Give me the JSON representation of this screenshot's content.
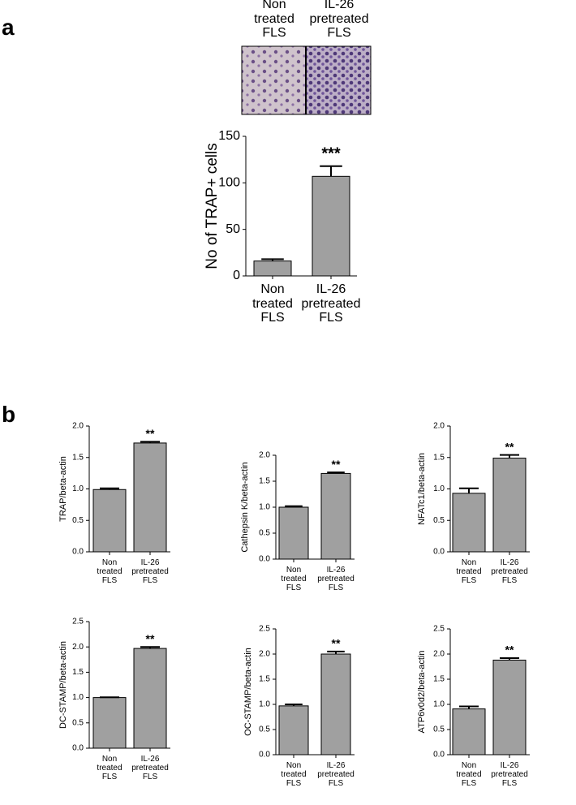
{
  "panel_labels": [
    "a",
    "b"
  ],
  "image_labels": [
    "Non treated FLS",
    "IL-26 pretreated FLS"
  ],
  "chart_data": [
    {
      "type": "bar",
      "ylabel": "No of TRAP+ cells",
      "categories": [
        "Non treated FLS",
        "IL-26 pretreated FLS"
      ],
      "values": [
        16,
        107
      ],
      "errors": [
        2,
        11
      ],
      "annotation": "***",
      "color": "#a0a0a0",
      "ylim": [
        0,
        150
      ],
      "yticks": [
        0,
        50,
        100,
        150
      ]
    },
    {
      "type": "bar",
      "ylabel": "TRAP/beta-actin",
      "categories": [
        "Non treated FLS",
        "IL-26 pretreated FLS"
      ],
      "values": [
        0.99,
        1.73
      ],
      "errors": [
        0.02,
        0.02
      ],
      "annotation": "**",
      "color": "#a0a0a0",
      "ylim": [
        0,
        2
      ],
      "yticks": [
        {
          "value": 0,
          "label": "0.0"
        },
        0.5,
        {
          "value": 1,
          "label": "1.0"
        },
        1.5,
        {
          "value": 2,
          "label": "2.0"
        }
      ]
    },
    {
      "type": "bar",
      "ylabel": "Cathepsin K/beta-actin",
      "categories": [
        "Non treated FLS",
        "IL-26 pretreated FLS"
      ],
      "values": [
        1.0,
        1.65
      ],
      "errors": [
        0.02,
        0.02
      ],
      "annotation": "**",
      "color": "#a0a0a0",
      "ylim": [
        0,
        2
      ],
      "yticks": [
        {
          "value": 0,
          "label": "0.0"
        },
        0.5,
        {
          "value": 1,
          "label": "1.0"
        },
        1.5,
        {
          "value": 2,
          "label": "2.0"
        }
      ]
    },
    {
      "type": "bar",
      "ylabel": "NFATc1/beta-actin",
      "categories": [
        "Non treated FLS",
        "IL-26 pretreated FLS"
      ],
      "values": [
        0.93,
        1.49
      ],
      "errors": [
        0.08,
        0.05
      ],
      "annotation": "**",
      "color": "#a0a0a0",
      "ylim": [
        0,
        2
      ],
      "yticks": [
        {
          "value": 0,
          "label": "0.0"
        },
        0.5,
        {
          "value": 1,
          "label": "1.0"
        },
        1.5,
        {
          "value": 2,
          "label": "2.0"
        }
      ]
    },
    {
      "type": "bar",
      "ylabel": "DC-STAMP/beta-actin",
      "categories": [
        "Non treated FLS",
        "IL-26 pretreated FLS"
      ],
      "values": [
        1.0,
        1.97
      ],
      "errors": [
        0.005,
        0.03
      ],
      "annotation": "**",
      "color": "#a0a0a0",
      "ylim": [
        0,
        2.5
      ],
      "yticks": [
        {
          "value": 0,
          "label": "0.0"
        },
        0.5,
        {
          "value": 1,
          "label": "1.0"
        },
        1.5,
        {
          "value": 2,
          "label": "2.0"
        },
        2.5
      ]
    },
    {
      "type": "bar",
      "ylabel": "OC-STAMP/beta-actin",
      "categories": [
        "Non treated FLS",
        "IL-26 pretreated FLS"
      ],
      "values": [
        0.97,
        2.0
      ],
      "errors": [
        0.03,
        0.05
      ],
      "annotation": "**",
      "color": "#a0a0a0",
      "ylim": [
        0,
        2.5
      ],
      "yticks": [
        {
          "value": 0,
          "label": "0.0"
        },
        0.5,
        {
          "value": 1,
          "label": "1.0"
        },
        1.5,
        {
          "value": 2,
          "label": "2.0"
        },
        2.5
      ]
    },
    {
      "type": "bar",
      "ylabel": "ATP6v0d2/beta-actin",
      "categories": [
        "Non treated FLS",
        "IL-26 pretreated FLS"
      ],
      "values": [
        0.91,
        1.88
      ],
      "errors": [
        0.05,
        0.04
      ],
      "annotation": "**",
      "color": "#a0a0a0",
      "ylim": [
        0,
        2.5
      ],
      "yticks": [
        {
          "value": 0,
          "label": "0.0"
        },
        0.5,
        {
          "value": 1,
          "label": "1.0"
        },
        1.5,
        {
          "value": 2,
          "label": "2.0"
        },
        2.5
      ]
    }
  ]
}
